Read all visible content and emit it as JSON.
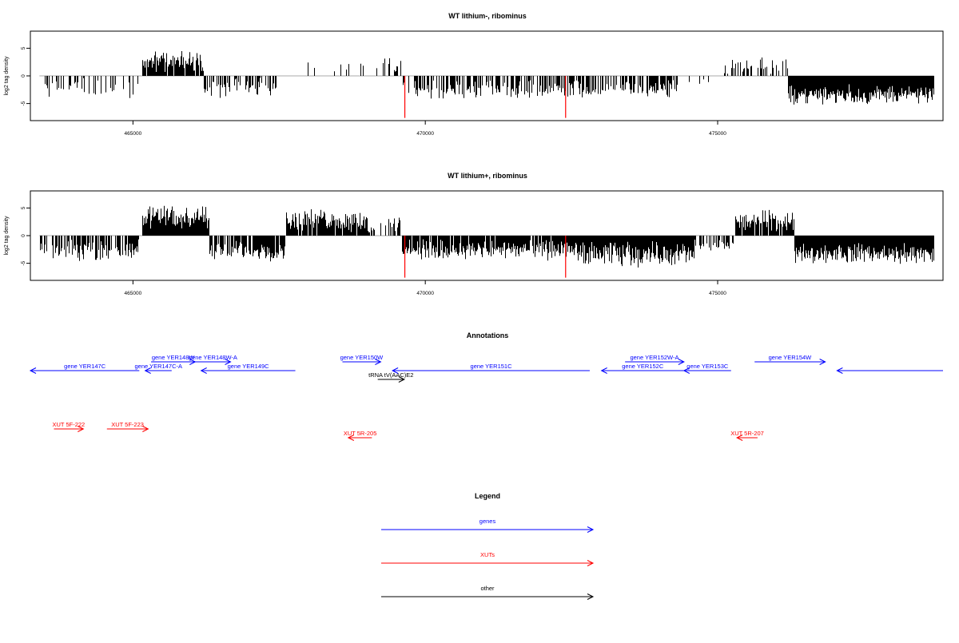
{
  "chart_data": [
    {
      "type": "bar",
      "title": "WT lithium-, ribominus",
      "ylabel": "log2 tag density",
      "xlim": [
        463300,
        478800
      ],
      "ylim": [
        -7.8,
        7.8
      ],
      "x_ticks": [
        465000,
        470000,
        475000
      ],
      "x_tick_labels": [
        "465000",
        "470000",
        "475000"
      ],
      "y_ticks": [
        5,
        0,
        -5
      ],
      "y_tick_labels": [
        "5",
        "0",
        "-5"
      ],
      "grid": false,
      "segments": [
        {
          "x": [
            463400,
            465100
          ],
          "mean": -2.2,
          "spread": 1.2,
          "density": 0.35
        },
        {
          "x": [
            465150,
            466200
          ],
          "mean": 3.0,
          "spread": 1.6,
          "density": 0.9
        },
        {
          "x": [
            466200,
            467500
          ],
          "mean": -2.3,
          "spread": 1.3,
          "density": 0.45
        },
        {
          "x": [
            467500,
            469300
          ],
          "mean": 1.8,
          "spread": 0.8,
          "density": 0.12
        },
        {
          "x": [
            469300,
            469600
          ],
          "mean": 2.0,
          "spread": 1.5,
          "density": 0.3
        },
        {
          "x": [
            469600,
            474300
          ],
          "mean": -2.5,
          "spread": 1.2,
          "density": 0.6
        },
        {
          "x": [
            474300,
            475100
          ],
          "mean": -1.0,
          "spread": 0.5,
          "density": 0.12
        },
        {
          "x": [
            475100,
            476200
          ],
          "mean": 1.8,
          "spread": 1.2,
          "density": 0.4
        },
        {
          "x": [
            476200,
            478700
          ],
          "mean": -3.4,
          "spread": 1.2,
          "density": 1.0
        }
      ],
      "highlights": [
        {
          "x": 469650,
          "y": -7.6,
          "color": "#ff0000"
        },
        {
          "x": 472400,
          "y": -7.6,
          "color": "#ff0000"
        }
      ]
    },
    {
      "type": "bar",
      "title": "WT lithium+, ribominus",
      "ylabel": "log2 tag density",
      "xlim": [
        463300,
        478800
      ],
      "ylim": [
        -7.8,
        7.8
      ],
      "x_ticks": [
        465000,
        470000,
        475000
      ],
      "x_tick_labels": [
        "465000",
        "470000",
        "475000"
      ],
      "y_ticks": [
        5,
        0,
        -5
      ],
      "y_tick_labels": [
        "5",
        "0",
        "-5"
      ],
      "grid": false,
      "segments": [
        {
          "x": [
            463400,
            465100
          ],
          "mean": -2.5,
          "spread": 1.4,
          "density": 0.7
        },
        {
          "x": [
            465150,
            466300
          ],
          "mean": 3.3,
          "spread": 1.6,
          "density": 1.0
        },
        {
          "x": [
            466300,
            467600
          ],
          "mean": -2.8,
          "spread": 1.4,
          "density": 0.8
        },
        {
          "x": [
            467600,
            469000
          ],
          "mean": 2.8,
          "spread": 1.4,
          "density": 0.9
        },
        {
          "x": [
            469000,
            469600
          ],
          "mean": 1.5,
          "spread": 1.2,
          "density": 0.4
        },
        {
          "x": [
            469600,
            472500
          ],
          "mean": -2.6,
          "spread": 1.3,
          "density": 0.9
        },
        {
          "x": [
            472500,
            474600
          ],
          "mean": -3.3,
          "spread": 1.6,
          "density": 1.0
        },
        {
          "x": [
            474600,
            475300
          ],
          "mean": -1.8,
          "spread": 0.8,
          "density": 0.5
        },
        {
          "x": [
            475300,
            476300
          ],
          "mean": 2.6,
          "spread": 1.3,
          "density": 0.9
        },
        {
          "x": [
            476300,
            478700
          ],
          "mean": -3.2,
          "spread": 1.3,
          "density": 1.0
        }
      ],
      "highlights": [
        {
          "x": 469650,
          "y": -7.6,
          "color": "#ff0000"
        },
        {
          "x": 472400,
          "y": -7.6,
          "color": "#ff0000"
        }
      ]
    }
  ],
  "annotations": {
    "title": "Annotations",
    "xlim": [
      463300,
      478800
    ],
    "features": [
      {
        "label": "gene YER147C",
        "start": 465150,
        "end": 463300,
        "row": 1,
        "color": "#0000ff",
        "label_offset": 0
      },
      {
        "label": "gene YER147C-A",
        "start": 465700,
        "end": 465250,
        "row": 1,
        "color": "#0000ff",
        "label_offset": 0
      },
      {
        "label": "gene YER148W",
        "start": 465350,
        "end": 466100,
        "row": 0,
        "color": "#0000ff",
        "label_offset": 0
      },
      {
        "label": "gene YER148W-A",
        "start": 466100,
        "end": 466700,
        "row": 0,
        "color": "#0000ff",
        "label_offset": 0
      },
      {
        "label": "gene YER149C",
        "start": 467800,
        "end": 466200,
        "row": 1,
        "color": "#0000ff",
        "label_offset": 0
      },
      {
        "label": "gene YER150W",
        "start": 468600,
        "end": 469250,
        "row": 0,
        "color": "#0000ff",
        "label_offset": 0
      },
      {
        "label": "tRNA tV(AAC)E2",
        "start": 469200,
        "end": 469650,
        "row": 2,
        "color": "#000000",
        "label_offset": 0
      },
      {
        "label": "gene YER151C",
        "start": 472800,
        "end": 469450,
        "row": 1,
        "color": "#0000ff",
        "label_offset": 0
      },
      {
        "label": "gene YER152C",
        "start": 474400,
        "end": 473000,
        "row": 1,
        "color": "#0000ff",
        "label_offset": 0
      },
      {
        "label": "gene YER152W-A",
        "start": 473400,
        "end": 474400,
        "row": 0,
        "color": "#0000ff",
        "label_offset": 0
      },
      {
        "label": "gene YER153C",
        "start": 475200,
        "end": 474400,
        "row": 1,
        "color": "#0000ff",
        "label_offset": 0
      },
      {
        "label": "gene YER154W",
        "start": 475600,
        "end": 476800,
        "row": 0,
        "color": "#0000ff",
        "label_offset": 0
      },
      {
        "label": "",
        "start": 478800,
        "end": 477000,
        "row": 1,
        "color": "#0000ff",
        "label_offset": 0
      },
      {
        "label": "XUT 5F-222",
        "start": 463700,
        "end": 464200,
        "row": 4,
        "color": "#ff0000",
        "label_offset": 0
      },
      {
        "label": "XUT 5F-223",
        "start": 464600,
        "end": 465300,
        "row": 4,
        "color": "#ff0000",
        "label_offset": 0
      },
      {
        "label": "XUT 5R-205",
        "start": 469100,
        "end": 468700,
        "row": 5,
        "color": "#ff0000",
        "label_offset": 0
      },
      {
        "label": "XUT 5R-207",
        "start": 475650,
        "end": 475300,
        "row": 5,
        "color": "#ff0000",
        "label_offset": 0
      }
    ]
  },
  "legend": {
    "title": "Legend",
    "entries": [
      {
        "label": "genes",
        "color": "#0000ff"
      },
      {
        "label": "XUTs",
        "color": "#ff0000"
      },
      {
        "label": "other",
        "color": "#000000"
      }
    ]
  }
}
